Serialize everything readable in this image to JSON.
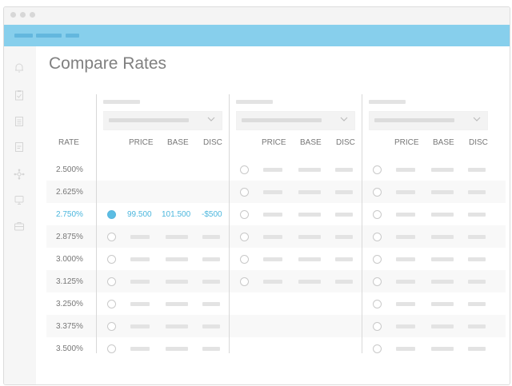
{
  "title": "Compare Rates",
  "columns": {
    "rate": "RATE",
    "price": "PRICE",
    "base": "BASE",
    "disc": "DISC"
  },
  "rates": [
    "2.500%",
    "2.625%",
    "2.750%",
    "2.875%",
    "3.000%",
    "3.125%",
    "3.250%",
    "3.375%",
    "3.500%"
  ],
  "selected": {
    "rate": "2.750%",
    "price": "99.500",
    "base": "101.500",
    "disc": "-$500"
  },
  "colors": {
    "accent": "#4bb6dd",
    "appbar": "#87cfec"
  },
  "sidebar_icons": [
    "bell-icon",
    "clipboard-icon",
    "document-icon",
    "note-icon",
    "network-icon",
    "monitor-icon",
    "briefcase-icon"
  ]
}
